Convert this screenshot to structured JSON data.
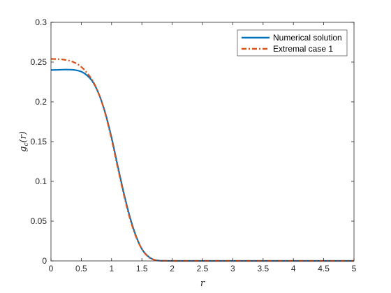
{
  "chart_data": {
    "type": "line",
    "title": "",
    "xlabel": "r",
    "ylabel_main": "g",
    "ylabel_sub": "c",
    "ylabel_arg": "(r)",
    "xlim": [
      0,
      5
    ],
    "ylim": [
      0,
      0.3
    ],
    "xticks": [
      0,
      0.5,
      1,
      1.5,
      2,
      2.5,
      3,
      3.5,
      4,
      4.5,
      5
    ],
    "xtick_labels": [
      "0",
      "0.5",
      "1",
      "1.5",
      "2",
      "2.5",
      "3",
      "3.5",
      "4",
      "4.5",
      "5"
    ],
    "yticks": [
      0,
      0.05,
      0.1,
      0.15,
      0.2,
      0.25,
      0.3
    ],
    "ytick_labels": [
      "0",
      "0.05",
      "0.1",
      "0.15",
      "0.2",
      "0.25",
      "0.3"
    ],
    "grid": false,
    "legend_position": "top-right",
    "series": [
      {
        "name": "Numerical solution",
        "color": "#0072BD",
        "style": "solid",
        "x": [
          0,
          0.1,
          0.2,
          0.3,
          0.4,
          0.5,
          0.6,
          0.7,
          0.8,
          0.9,
          1.0,
          1.1,
          1.2,
          1.3,
          1.4,
          1.5,
          1.6,
          1.7,
          1.8,
          1.9,
          2.0,
          2.5,
          3.0,
          3.5,
          4.0,
          4.5,
          5.0
        ],
        "values": [
          0.24,
          0.2402,
          0.2405,
          0.2405,
          0.24,
          0.238,
          0.233,
          0.224,
          0.208,
          0.185,
          0.155,
          0.12,
          0.086,
          0.056,
          0.032,
          0.015,
          0.006,
          0.0015,
          0.0003,
          0.0001,
          0.0,
          0.0,
          0.0,
          0.0,
          0.0,
          0.0,
          0.0
        ]
      },
      {
        "name": "Extremal case 1",
        "color": "#D95319",
        "style": "dashdot",
        "x": [
          0,
          0.1,
          0.2,
          0.3,
          0.4,
          0.5,
          0.6,
          0.7,
          0.8,
          0.9,
          1.0,
          1.1,
          1.2,
          1.3,
          1.4,
          1.5,
          1.6,
          1.7,
          1.8,
          1.9,
          2.0,
          2.5,
          3.0,
          3.5,
          4.0,
          4.5,
          5.0
        ],
        "values": [
          0.254,
          0.2538,
          0.2532,
          0.2518,
          0.249,
          0.244,
          0.236,
          0.225,
          0.208,
          0.184,
          0.153,
          0.118,
          0.084,
          0.054,
          0.031,
          0.015,
          0.0055,
          0.0015,
          0.0003,
          0.0001,
          0.0,
          0.0,
          0.0,
          0.0,
          0.0,
          0.0,
          0.0
        ]
      }
    ]
  }
}
